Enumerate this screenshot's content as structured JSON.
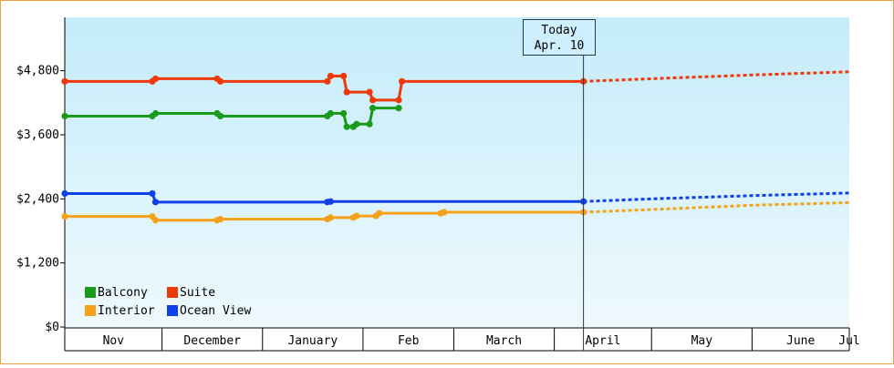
{
  "chart_data": {
    "type": "line",
    "ylim": [
      0,
      5800
    ],
    "y_ticks": [
      "$0",
      "$1,200",
      "$2,400",
      "$3,600",
      "$4,800"
    ],
    "y_tick_values": [
      0,
      1200,
      2400,
      3600,
      4800
    ],
    "months": [
      "Nov",
      "December",
      "January",
      "Feb",
      "March",
      "April",
      "May",
      "June",
      "Jul"
    ],
    "x_domain": [
      "2024-11-01",
      "2025-07-01"
    ],
    "month_starts": [
      "2024-11-01",
      "2024-12-01",
      "2025-01-01",
      "2025-02-01",
      "2025-03-01",
      "2025-04-01",
      "2025-05-01",
      "2025-06-01",
      "2025-07-01"
    ],
    "today_label": "Today",
    "today_date_label": "Apr. 10",
    "today_date": "2025-04-10",
    "grid": false,
    "legend_placement": "bottom-left",
    "series": [
      {
        "name": "Balcony",
        "color": "#1a9a1a",
        "points": [
          [
            "2024-11-01",
            3950
          ],
          [
            "2024-11-28",
            3950
          ],
          [
            "2024-11-29",
            4000
          ],
          [
            "2024-12-18",
            4000
          ],
          [
            "2024-12-19",
            3950
          ],
          [
            "2025-01-21",
            3950
          ],
          [
            "2025-01-22",
            4000
          ],
          [
            "2025-01-26",
            4000
          ],
          [
            "2025-01-27",
            3750
          ],
          [
            "2025-01-29",
            3750
          ],
          [
            "2025-01-30",
            3800
          ],
          [
            "2025-02-03",
            3800
          ],
          [
            "2025-02-04",
            4100
          ],
          [
            "2025-02-12",
            4100
          ]
        ],
        "forecast": []
      },
      {
        "name": "Suite",
        "color": "#ee3a0a",
        "points": [
          [
            "2024-11-01",
            4600
          ],
          [
            "2024-11-28",
            4600
          ],
          [
            "2024-11-29",
            4650
          ],
          [
            "2024-12-18",
            4650
          ],
          [
            "2024-12-19",
            4600
          ],
          [
            "2025-01-21",
            4600
          ],
          [
            "2025-01-22",
            4700
          ],
          [
            "2025-01-26",
            4700
          ],
          [
            "2025-01-27",
            4400
          ],
          [
            "2025-02-03",
            4400
          ],
          [
            "2025-02-04",
            4250
          ],
          [
            "2025-02-12",
            4250
          ],
          [
            "2025-02-13",
            4600
          ],
          [
            "2025-04-10",
            4600
          ]
        ],
        "forecast": [
          [
            "2025-04-10",
            4600
          ],
          [
            "2025-05-01",
            4650
          ],
          [
            "2025-06-01",
            4720
          ],
          [
            "2025-07-01",
            4780
          ],
          [
            "2025-07-12",
            4800
          ]
        ]
      },
      {
        "name": "Interior",
        "color": "#f5a21a",
        "points": [
          [
            "2024-11-01",
            2070
          ],
          [
            "2024-11-28",
            2070
          ],
          [
            "2024-11-29",
            2000
          ],
          [
            "2024-12-18",
            2000
          ],
          [
            "2024-12-19",
            2020
          ],
          [
            "2025-01-21",
            2020
          ],
          [
            "2025-01-22",
            2050
          ],
          [
            "2025-01-29",
            2050
          ],
          [
            "2025-01-30",
            2080
          ],
          [
            "2025-02-05",
            2080
          ],
          [
            "2025-02-06",
            2130
          ],
          [
            "2025-02-25",
            2130
          ],
          [
            "2025-02-26",
            2150
          ],
          [
            "2025-04-10",
            2150
          ]
        ],
        "forecast": [
          [
            "2025-04-10",
            2150
          ],
          [
            "2025-05-01",
            2200
          ],
          [
            "2025-06-01",
            2280
          ],
          [
            "2025-07-01",
            2330
          ],
          [
            "2025-07-12",
            2360
          ]
        ]
      },
      {
        "name": "Ocean View",
        "color": "#1040e8",
        "points": [
          [
            "2024-11-01",
            2500
          ],
          [
            "2024-11-28",
            2500
          ],
          [
            "2024-11-29",
            2340
          ],
          [
            "2025-01-21",
            2340
          ],
          [
            "2025-01-22",
            2350
          ],
          [
            "2025-04-10",
            2350
          ]
        ],
        "forecast": [
          [
            "2025-04-10",
            2350
          ],
          [
            "2025-05-01",
            2400
          ],
          [
            "2025-06-01",
            2460
          ],
          [
            "2025-07-01",
            2510
          ],
          [
            "2025-07-12",
            2530
          ]
        ]
      }
    ]
  }
}
